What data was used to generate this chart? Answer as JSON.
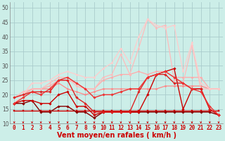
{
  "background_color": "#cceee8",
  "grid_color": "#aacccc",
  "xlim": [
    -0.5,
    23.5
  ],
  "ylim": [
    10,
    52
  ],
  "yticks": [
    10,
    15,
    20,
    25,
    30,
    35,
    40,
    45,
    50
  ],
  "xticks": [
    0,
    1,
    2,
    3,
    4,
    5,
    6,
    7,
    8,
    9,
    10,
    11,
    12,
    13,
    14,
    15,
    16,
    17,
    18,
    19,
    20,
    21,
    22,
    23
  ],
  "xlabel": "Vent moyen/en rafales ( km/h )",
  "series": [
    {
      "x": [
        0,
        1,
        2,
        3,
        4,
        5,
        6,
        7,
        8,
        9,
        10,
        11,
        12,
        13,
        14,
        15,
        16,
        17,
        18,
        19,
        20,
        21,
        22,
        23
      ],
      "y": [
        14.5,
        14.5,
        14.5,
        14.5,
        14.5,
        14.5,
        14.5,
        14.5,
        14.5,
        14.5,
        14.5,
        14.5,
        14.5,
        14.5,
        14.5,
        14.5,
        14.5,
        14.5,
        14.5,
        14.5,
        14.5,
        14.5,
        14.5,
        14.5
      ],
      "color": "#cc0000",
      "linewidth": 1.0,
      "marker": "s",
      "markersize": 1.5,
      "zorder": 3
    },
    {
      "x": [
        0,
        1,
        2,
        3,
        4,
        5,
        6,
        7,
        8,
        9,
        10,
        11,
        12,
        13,
        14,
        15,
        16,
        17,
        18,
        19,
        20,
        21,
        22,
        23
      ],
      "y": [
        17,
        17,
        18,
        14,
        14,
        16,
        16,
        14,
        14,
        12,
        14,
        14,
        14,
        14,
        14,
        14,
        14,
        14,
        14,
        14,
        14,
        14,
        14,
        13
      ],
      "color": "#880000",
      "linewidth": 1.0,
      "marker": "D",
      "markersize": 1.8,
      "zorder": 4
    },
    {
      "x": [
        0,
        1,
        2,
        3,
        4,
        5,
        6,
        7,
        8,
        9,
        10,
        11,
        12,
        13,
        14,
        15,
        16,
        17,
        18,
        19,
        20,
        21,
        22,
        23
      ],
      "y": [
        17,
        18,
        18,
        17,
        17,
        20,
        21,
        16,
        16,
        13,
        14,
        14,
        14,
        14,
        14,
        20,
        27,
        28,
        29,
        15,
        22,
        22,
        15,
        13
      ],
      "color": "#cc0000",
      "linewidth": 1.0,
      "marker": "D",
      "markersize": 1.8,
      "zorder": 4
    },
    {
      "x": [
        0,
        1,
        2,
        3,
        4,
        5,
        6,
        7,
        8,
        9,
        10,
        11,
        12,
        13,
        14,
        15,
        16,
        17,
        18,
        19,
        20,
        21,
        22,
        23
      ],
      "y": [
        19,
        20,
        21,
        21,
        21,
        25,
        25,
        19,
        17,
        14,
        14,
        14,
        14,
        14,
        21,
        26,
        27,
        27,
        24,
        24,
        22,
        22,
        15,
        13
      ],
      "color": "#dd2222",
      "linewidth": 1.0,
      "marker": "D",
      "markersize": 1.8,
      "zorder": 4
    },
    {
      "x": [
        0,
        1,
        2,
        3,
        4,
        5,
        6,
        7,
        8,
        9,
        10,
        11,
        12,
        13,
        14,
        15,
        16,
        17,
        18,
        19,
        20,
        21,
        22,
        23
      ],
      "y": [
        17,
        19,
        21,
        20,
        22,
        25,
        26,
        24,
        22,
        19,
        20,
        20,
        21,
        22,
        22,
        26,
        27,
        28,
        26,
        24,
        22,
        21,
        16,
        13
      ],
      "color": "#ee3333",
      "linewidth": 1.0,
      "marker": "D",
      "markersize": 1.8,
      "zorder": 4
    },
    {
      "x": [
        0,
        1,
        2,
        3,
        4,
        5,
        6,
        7,
        8,
        9,
        10,
        11,
        12,
        13,
        14,
        15,
        16,
        17,
        18,
        19,
        20,
        21,
        22,
        23
      ],
      "y": [
        19,
        20,
        22,
        22,
        22,
        24,
        22,
        21,
        20,
        21,
        22,
        22,
        22,
        22,
        22,
        22,
        22,
        23,
        23,
        23,
        23,
        23,
        22,
        22
      ],
      "color": "#ff8888",
      "linewidth": 0.9,
      "marker": "D",
      "markersize": 1.5,
      "zorder": 3
    },
    {
      "x": [
        0,
        1,
        2,
        3,
        4,
        5,
        6,
        7,
        8,
        9,
        10,
        11,
        12,
        13,
        14,
        15,
        16,
        17,
        18,
        19,
        20,
        21,
        22,
        23
      ],
      "y": [
        19,
        20,
        22,
        22,
        23,
        25,
        25,
        24,
        22,
        22,
        25,
        26,
        27,
        27,
        28,
        27,
        28,
        28,
        26,
        26,
        26,
        26,
        22,
        22
      ],
      "color": "#ffaaaa",
      "linewidth": 0.9,
      "marker": "D",
      "markersize": 1.5,
      "zorder": 3
    },
    {
      "x": [
        0,
        1,
        2,
        3,
        4,
        5,
        6,
        7,
        8,
        9,
        10,
        11,
        12,
        13,
        14,
        15,
        16,
        17,
        18,
        19,
        20,
        21,
        22,
        23
      ],
      "y": [
        19,
        21,
        22,
        22,
        24,
        26,
        26,
        23,
        22,
        22,
        26,
        27,
        34,
        27,
        36,
        46,
        43,
        44,
        25,
        24,
        37,
        22,
        22,
        22
      ],
      "color": "#ffbbbb",
      "linewidth": 0.9,
      "marker": "D",
      "markersize": 1.5,
      "zorder": 3
    },
    {
      "x": [
        0,
        1,
        2,
        3,
        4,
        5,
        6,
        7,
        8,
        9,
        10,
        11,
        12,
        13,
        14,
        15,
        16,
        17,
        18,
        19,
        20,
        21,
        22,
        23
      ],
      "y": [
        17,
        20,
        24,
        24,
        25,
        27,
        28,
        27,
        26,
        26,
        29,
        31,
        36,
        31,
        40,
        46,
        44,
        43,
        44,
        28,
        38,
        24,
        22,
        22
      ],
      "color": "#ffcccc",
      "linewidth": 0.9,
      "marker": "D",
      "markersize": 1.5,
      "zorder": 3
    }
  ],
  "tick_fontsize": 5.5,
  "label_fontsize": 7,
  "tick_color": "#cc0000",
  "ytick_color": "#555555"
}
